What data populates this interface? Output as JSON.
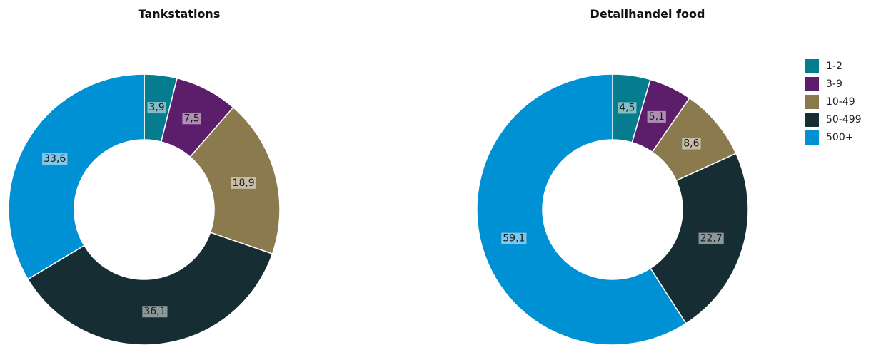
{
  "legend": [
    {
      "label": "1-2",
      "color": "#067d8e"
    },
    {
      "label": "3-9",
      "color": "#5c1d6b"
    },
    {
      "label": "10-49",
      "color": "#8b7a4e"
    },
    {
      "label": "50-499",
      "color": "#162e33"
    },
    {
      "label": "500+",
      "color": "#0090d4"
    }
  ],
  "chart_data": [
    {
      "type": "pie",
      "subtype": "donut",
      "title": "Tankstations",
      "categories": [
        "1-2",
        "3-9",
        "10-49",
        "50-499",
        "500+"
      ],
      "values": [
        3.9,
        7.5,
        18.9,
        36.1,
        33.6
      ],
      "labels": [
        "3,9",
        "7,5",
        "18,9",
        "36,1",
        "33,6"
      ],
      "colors": [
        "#067d8e",
        "#5c1d6b",
        "#8b7a4e",
        "#162e33",
        "#0090d4"
      ]
    },
    {
      "type": "pie",
      "subtype": "donut",
      "title": "Detailhandel food",
      "categories": [
        "1-2",
        "3-9",
        "10-49",
        "50-499",
        "500+"
      ],
      "values": [
        4.5,
        5.1,
        8.6,
        22.7,
        59.1
      ],
      "labels": [
        "4,5",
        "5,1",
        "8,6",
        "22,7",
        "59,1"
      ],
      "colors": [
        "#067d8e",
        "#5c1d6b",
        "#8b7a4e",
        "#162e33",
        "#0090d4"
      ]
    }
  ]
}
